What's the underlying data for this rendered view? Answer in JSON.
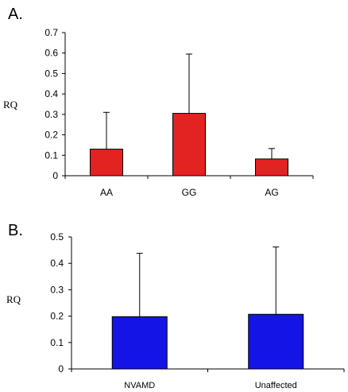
{
  "chart_data": [
    {
      "type": "bar",
      "panel_label": "A.",
      "ylabel": "RQ",
      "xlabel": "",
      "ylim": [
        0,
        0.7
      ],
      "yticks": [
        "0",
        "0.1",
        "0.2",
        "0.3",
        "0.4",
        "0.5",
        "0.6",
        "0.7"
      ],
      "categories": [
        "AA",
        "GG",
        "AG"
      ],
      "values": [
        0.13,
        0.305,
        0.082
      ],
      "error_upper": [
        0.31,
        0.595,
        0.133
      ],
      "bar_color": "#e32222"
    },
    {
      "type": "bar",
      "panel_label": "B.",
      "ylabel": "RQ",
      "xlabel": "",
      "ylim": [
        0,
        0.5
      ],
      "yticks": [
        "0",
        "0.1",
        "0.2",
        "0.3",
        "0.4",
        "0.5"
      ],
      "categories": [
        "NVAMD",
        "Unaffected"
      ],
      "values": [
        0.198,
        0.207
      ],
      "error_upper": [
        0.438,
        0.462
      ],
      "bar_color": "#1414e6"
    }
  ]
}
